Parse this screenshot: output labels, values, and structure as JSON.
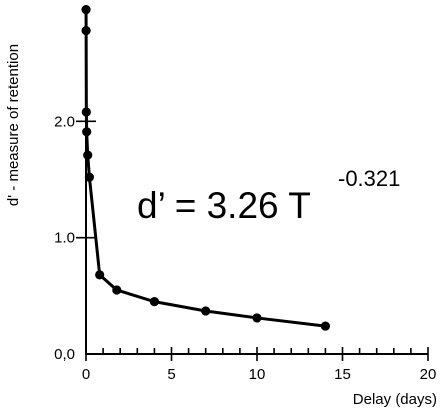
{
  "chart_data": {
    "type": "line",
    "title": "",
    "xlabel": "Delay (days)",
    "ylabel": "d' - measure of retention",
    "xlim": [
      0,
      20
    ],
    "ylim": [
      0,
      3.0
    ],
    "x_ticks": [
      0,
      5,
      10,
      15,
      20
    ],
    "x_tick_labels": [
      "0",
      "5",
      "10",
      "15",
      "20"
    ],
    "x_minor_step": 1,
    "y_ticks": [
      0,
      1.0,
      2.0
    ],
    "y_tick_labels": [
      "0,0",
      "1.0",
      "2.0"
    ],
    "grid": false,
    "equation": {
      "base": "d’ = 3.26 T",
      "exponent": "-0.321"
    },
    "fit": {
      "coefficient": 3.26,
      "exponent": -0.321
    },
    "points": [
      {
        "x": 0.003,
        "y": 2.96
      },
      {
        "x": 0.007,
        "y": 2.78
      },
      {
        "x": 0.02,
        "y": 2.08
      },
      {
        "x": 0.04,
        "y": 1.91
      },
      {
        "x": 0.1,
        "y": 1.71
      },
      {
        "x": 0.2,
        "y": 1.52
      },
      {
        "x": 0.8,
        "y": 0.68
      },
      {
        "x": 1.8,
        "y": 0.55
      },
      {
        "x": 4.0,
        "y": 0.45
      },
      {
        "x": 7.0,
        "y": 0.37
      },
      {
        "x": 10.0,
        "y": 0.31
      },
      {
        "x": 14.0,
        "y": 0.24
      }
    ]
  }
}
